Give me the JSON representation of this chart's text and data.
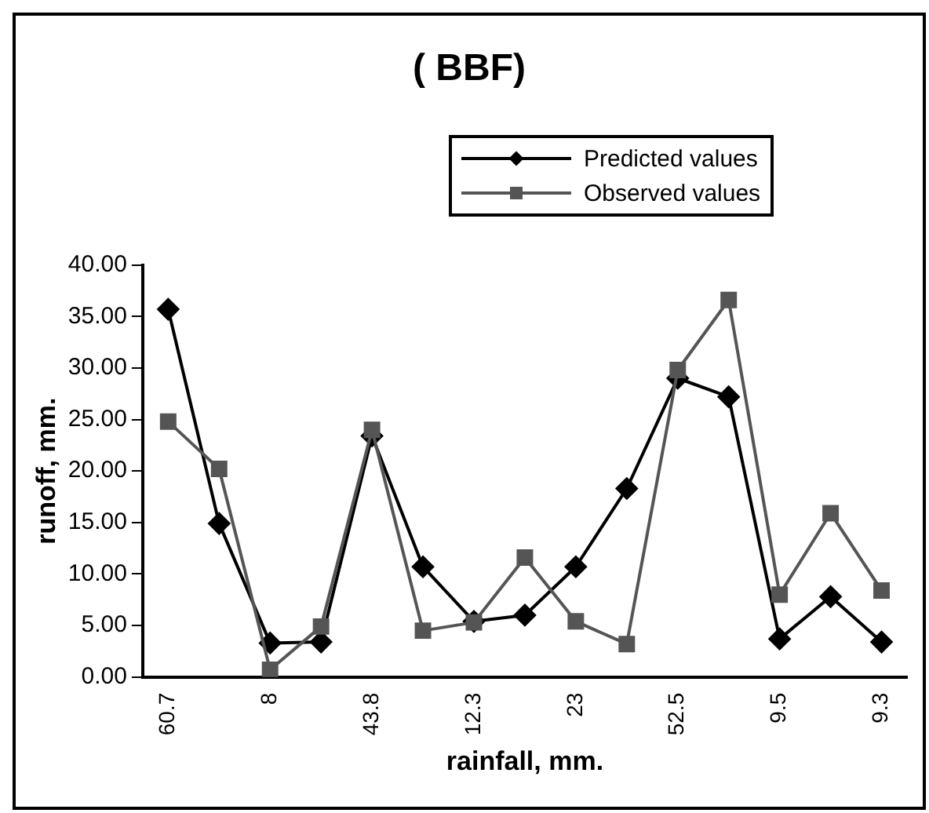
{
  "chart_data": {
    "type": "line",
    "title": "( BBF)",
    "xlabel": "rainfall, mm.",
    "ylabel": "runoff, mm.",
    "categories": [
      "60.7",
      null,
      "8",
      null,
      "43.8",
      null,
      "12.3",
      null,
      "23",
      null,
      "52.5",
      null,
      "9.5",
      null,
      "9.3"
    ],
    "series": [
      {
        "name": "Predicted values",
        "color": "#000000",
        "marker": "diamond",
        "values": [
          35.7,
          14.9,
          3.3,
          3.4,
          23.4,
          10.7,
          5.4,
          6.0,
          10.7,
          18.3,
          29.0,
          27.2,
          3.7,
          7.8,
          3.4
        ]
      },
      {
        "name": "Observed values",
        "color": "#555555",
        "marker": "square",
        "values": [
          24.8,
          20.2,
          0.7,
          4.9,
          24.0,
          4.5,
          5.3,
          11.6,
          5.4,
          3.2,
          29.8,
          36.6,
          8.0,
          15.9,
          8.4
        ]
      }
    ],
    "ylim": [
      0,
      40
    ],
    "yticks": [
      {
        "value": 0,
        "label": "0.00"
      },
      {
        "value": 5,
        "label": "5.00"
      },
      {
        "value": 10,
        "label": "10.00"
      },
      {
        "value": 15,
        "label": "15.00"
      },
      {
        "value": 20,
        "label": "20.00"
      },
      {
        "value": 25,
        "label": "25.00"
      },
      {
        "value": 30,
        "label": "30.00"
      },
      {
        "value": 35,
        "label": "35.00"
      },
      {
        "value": 40,
        "label": "40.00"
      }
    ],
    "grid": false,
    "legend": "top right",
    "line_style": "solid"
  }
}
